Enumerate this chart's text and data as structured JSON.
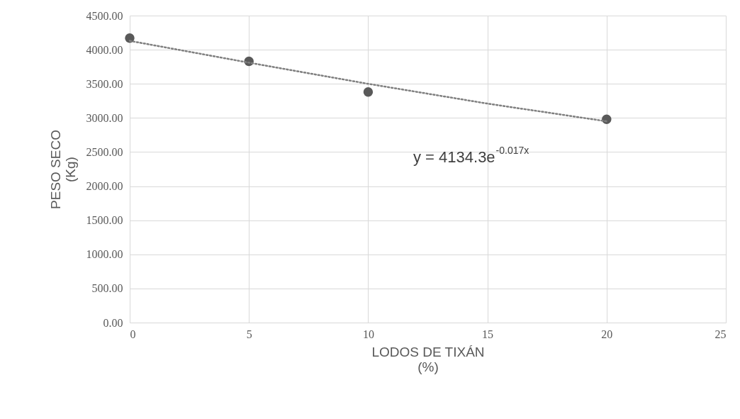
{
  "chart_data": {
    "type": "scatter",
    "xlabel": "LODOS DE TIXÁN\n(%)",
    "ylabel": "PESO SECO\n(Kg)",
    "x": [
      0,
      5,
      10,
      20
    ],
    "series": [
      {
        "color": "#595959",
        "values": [
          4170,
          3830,
          3380,
          2980
        ],
        "marker": "circle"
      },
      {
        "type": "line",
        "color": "#7f7f7f",
        "x": [
          0,
          5,
          10,
          15,
          20
        ],
        "values": [
          4130,
          3810,
          3500,
          3210,
          2950
        ],
        "line_style": "dotted",
        "marker": "none"
      }
    ],
    "xlim": [
      0,
      25
    ],
    "xticks": [
      0,
      5,
      10,
      15,
      20,
      25
    ],
    "ylim": [
      0,
      4500
    ],
    "yticks": [
      {
        "value": 0,
        "label": "0.00"
      },
      {
        "value": 500,
        "label": "500.00"
      },
      {
        "value": 1000,
        "label": "1000.00"
      },
      {
        "value": 1500,
        "label": "1500.00"
      },
      {
        "value": 2000,
        "label": "2000.00"
      },
      {
        "value": 2500,
        "label": "2500.00"
      },
      {
        "value": 3000,
        "label": "3000.00"
      },
      {
        "value": 3500,
        "label": "3500.00"
      },
      {
        "value": 4000,
        "label": "4000.00"
      },
      {
        "value": 4500,
        "label": "4500.00"
      }
    ],
    "grid": true,
    "annotations": [
      "y = 4134.3e$^{-0.017x}$"
    ]
  }
}
